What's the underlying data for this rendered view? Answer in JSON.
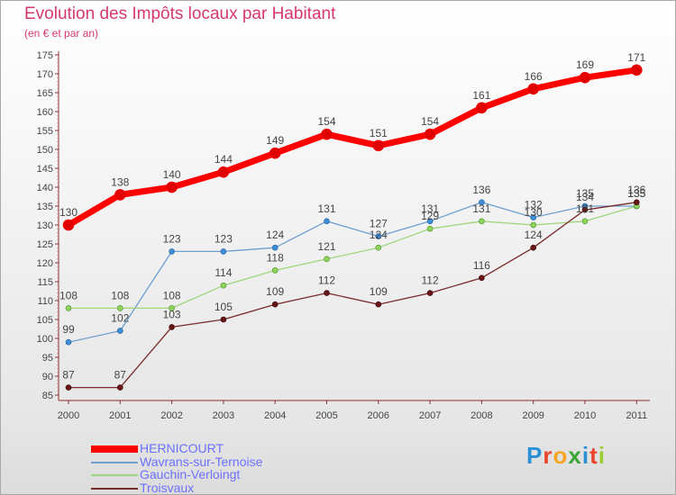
{
  "title": "Evolution des Impôts locaux par Habitant",
  "subtitle": "(en € et par an)",
  "brand": {
    "text": "Proxiti",
    "colors": [
      "#2b8fd6",
      "#e8452c",
      "#f5a623",
      "#3aa63a",
      "#2b8fd6",
      "#e8452c",
      "#9acd32"
    ]
  },
  "chart_data": {
    "type": "line",
    "title": "Evolution des Impôts locaux par Habitant",
    "subtitle": "(en € et par an)",
    "xlabel": "",
    "ylabel": "",
    "x": [
      "2000",
      "2001",
      "2002",
      "2003",
      "2004",
      "2005",
      "2006",
      "2007",
      "2008",
      "2009",
      "2010",
      "2011"
    ],
    "ylim": [
      85,
      175
    ],
    "yticks": [
      85,
      90,
      95,
      100,
      105,
      110,
      115,
      120,
      125,
      130,
      135,
      140,
      145,
      150,
      155,
      160,
      165,
      170,
      175
    ],
    "grid": false,
    "legend": "bottom-left",
    "series": [
      {
        "name": "HERNICOURT",
        "color": "#ff0000",
        "values": [
          130,
          138,
          140,
          144,
          149,
          154,
          151,
          154,
          161,
          166,
          169,
          171
        ]
      },
      {
        "name": "Wavrans-sur-Ternoise",
        "color": "#6f9fd0",
        "values": [
          99,
          102,
          123,
          123,
          124,
          131,
          127,
          131,
          136,
          132,
          135,
          135
        ]
      },
      {
        "name": "Gauchin-Verloingt",
        "color": "#9ed67a",
        "values": [
          108,
          108,
          108,
          114,
          118,
          121,
          124,
          129,
          131,
          130,
          131,
          135
        ]
      },
      {
        "name": "Troisvaux",
        "color": "#7a2a2a",
        "values": [
          87,
          87,
          103,
          105,
          109,
          112,
          109,
          112,
          116,
          124,
          134,
          136
        ]
      }
    ]
  }
}
